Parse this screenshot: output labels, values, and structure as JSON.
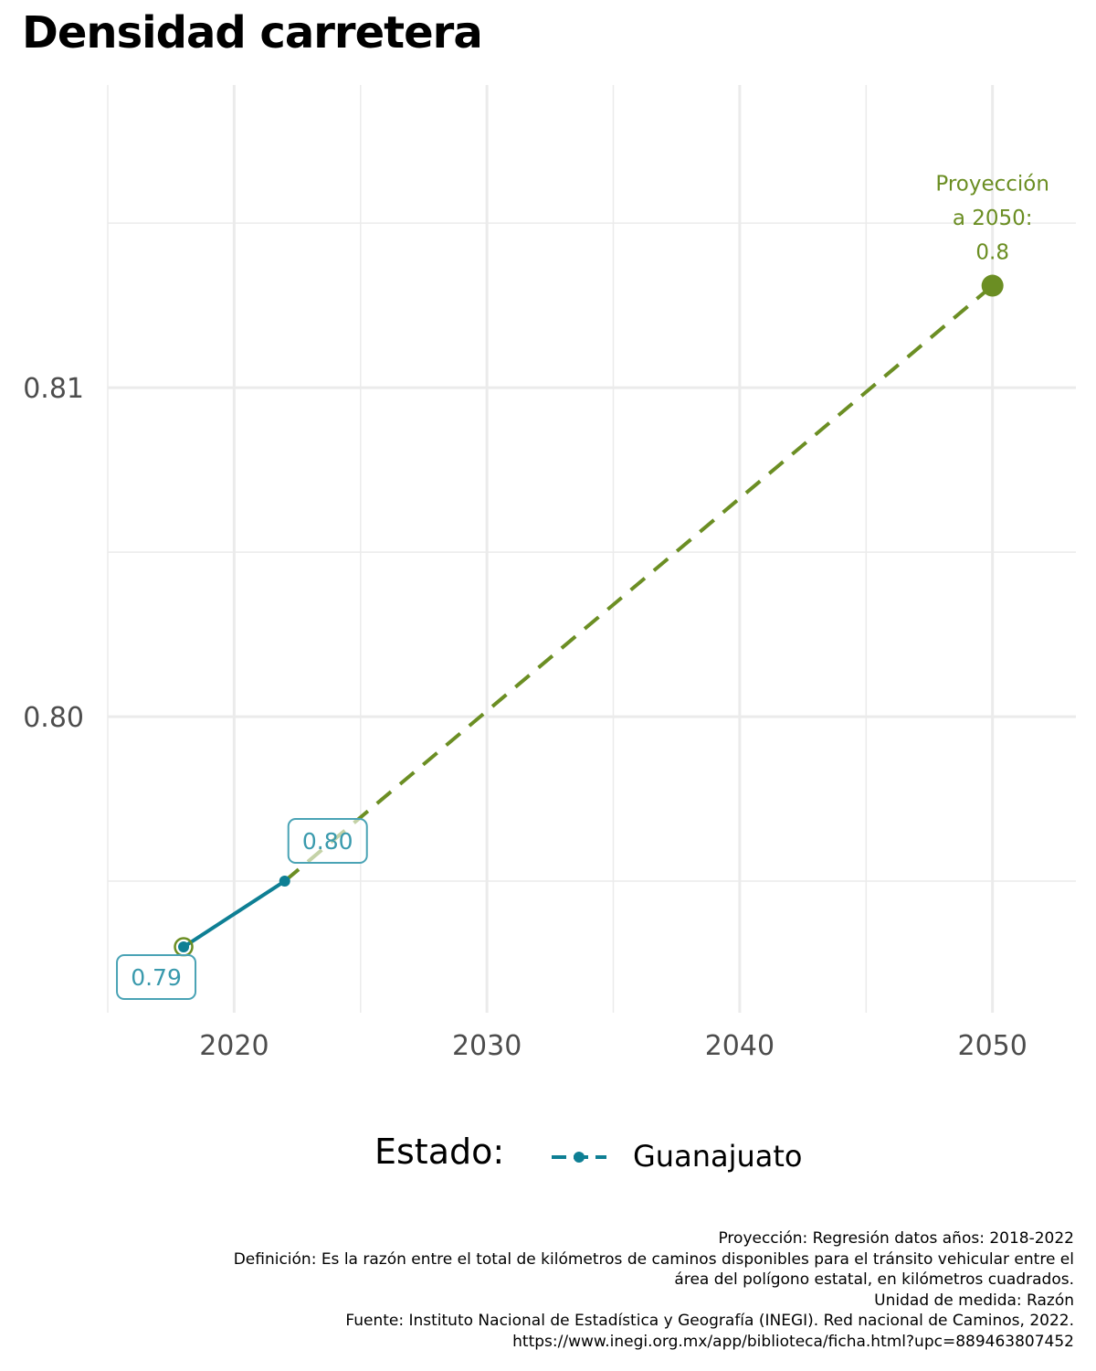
{
  "chart_data": {
    "type": "line",
    "title": "Densidad carretera",
    "xlabel": "",
    "ylabel": "",
    "xlim": [
      2015,
      2053.3
    ],
    "ylim": [
      0.791,
      0.8192
    ],
    "x_ticks": [
      2020,
      2030,
      2040,
      2050
    ],
    "x_tick_labels": [
      "2020",
      "2030",
      "2040",
      "2050"
    ],
    "x_minor_ticks": [
      2015,
      2025,
      2035,
      2045
    ],
    "y_ticks": [
      0.8,
      0.81
    ],
    "y_tick_labels": [
      "0.80",
      "0.81"
    ],
    "y_minor_ticks": [
      0.795,
      0.805,
      0.815
    ],
    "grid": true,
    "series": [
      {
        "name": "Guanajuato",
        "color": "#0e7f94",
        "style": "solid",
        "x": [
          2018,
          2022
        ],
        "y": [
          0.793,
          0.795
        ]
      },
      {
        "style": "dashed",
        "color": "#6b8e23",
        "x": [
          2022,
          2050
        ],
        "y": [
          0.795,
          0.8131
        ]
      }
    ],
    "data_labels": [
      {
        "x": 2018,
        "y": 0.793,
        "text": "0.79"
      },
      {
        "x": 2022,
        "y": 0.795,
        "text": "0.80"
      }
    ],
    "projection_point": {
      "x": 2050,
      "y": 0.8131
    },
    "annotation": {
      "lines": [
        "Proyección",
        "a 2050:",
        "0.8"
      ]
    },
    "legend": {
      "title": "Estado:",
      "entries": [
        "Guanajuato"
      ],
      "position": "bottom"
    },
    "caption": [
      "Proyección: Regresión datos años: 2018-2022",
      "Definición: Es la razón entre el total de kilómetros de caminos disponibles para el tránsito vehicular entre el",
      "área del polígono estatal, en kilómetros cuadrados.",
      "Unidad de medida: Razón",
      "Fuente: Instituto Nacional de Estadística y Geografía (INEGI). Red nacional de Caminos, 2022.",
      "https://www.inegi.org.mx/app/biblioteca/ficha.html?upc=889463807452"
    ],
    "colors": {
      "historic": "#0e7f94",
      "projection": "#6b8e23",
      "label_border": "#4aa3b5",
      "label_text": "#3a9aad",
      "grid": "#ebebeb",
      "axis_text": "#4d4d4d"
    }
  }
}
